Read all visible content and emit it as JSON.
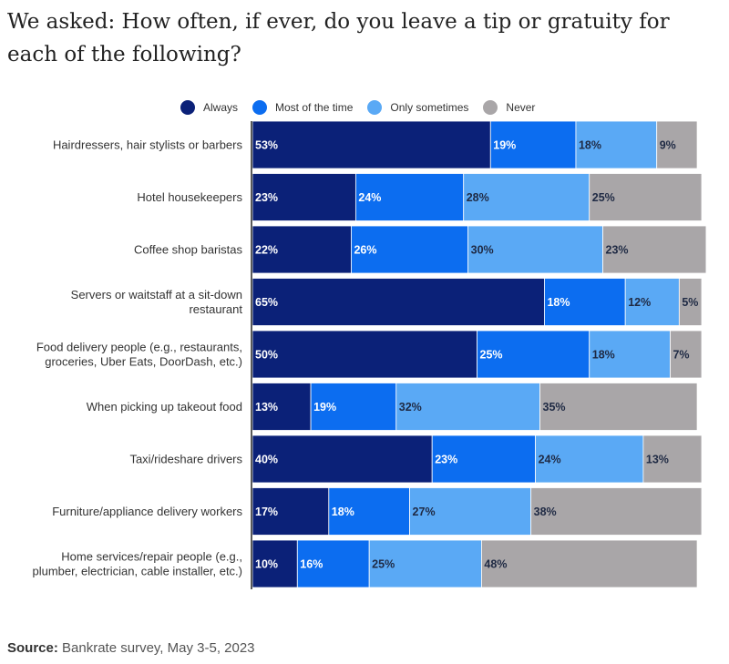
{
  "title": "We asked: How often, if ever, do you leave a tip or gratuity for each of the following?",
  "source": {
    "label": "Source:",
    "text": "Bankrate survey, May 3-5, 2023"
  },
  "chart_data": {
    "type": "bar",
    "orientation": "horizontal",
    "stacked": true,
    "categories": [
      "Hairdressers, hair stylists or barbers",
      "Hotel housekeepers",
      "Coffee shop baristas",
      "Servers or waitstaff at a sit-down restaurant",
      "Food delivery people (e.g., restaurants, groceries, Uber Eats, DoorDash, etc.)",
      "When picking up takeout food",
      "Taxi/rideshare drivers",
      "Furniture/appliance delivery workers",
      "Home services/repair people (e.g., plumber, electrician, cable installer, etc.)"
    ],
    "category_lines": [
      [
        "Hairdressers, hair stylists or barbers"
      ],
      [
        "Hotel housekeepers"
      ],
      [
        "Coffee shop baristas"
      ],
      [
        "Servers or waitstaff at a sit-down",
        "restaurant"
      ],
      [
        "Food delivery people (e.g., restaurants,",
        "groceries, Uber Eats, DoorDash, etc.)"
      ],
      [
        "When picking up takeout food"
      ],
      [
        "Taxi/rideshare drivers"
      ],
      [
        "Furniture/appliance delivery workers"
      ],
      [
        "Home services/repair people (e.g.,",
        "plumber, electrician, cable installer, etc.)"
      ]
    ],
    "series": [
      {
        "name": "Always",
        "color": "#0b2178",
        "values": [
          53,
          23,
          22,
          65,
          50,
          13,
          40,
          17,
          10
        ]
      },
      {
        "name": "Most of the time",
        "color": "#0c6df0",
        "values": [
          19,
          24,
          26,
          18,
          25,
          19,
          23,
          18,
          16
        ]
      },
      {
        "name": "Only sometimes",
        "color": "#5aa9f5",
        "values": [
          18,
          28,
          30,
          12,
          18,
          32,
          24,
          27,
          25
        ]
      },
      {
        "name": "Never",
        "color": "#a9a6a8",
        "values": [
          9,
          25,
          23,
          5,
          7,
          35,
          13,
          38,
          48
        ]
      }
    ],
    "value_suffix": "%",
    "legend_position": "top",
    "grid": false
  }
}
